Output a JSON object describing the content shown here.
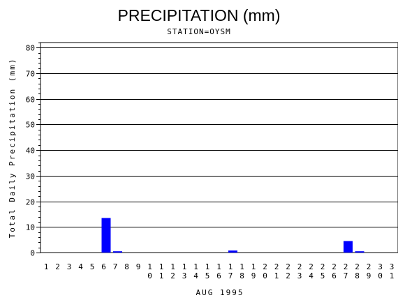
{
  "chart_data": {
    "type": "bar",
    "title": "PRECIPITATION (mm)",
    "subtitle": "STATION=OYSM",
    "xlabel": "AUG 1995",
    "ylabel": "Total Daily Precipitation (mm)",
    "ylim": [
      0,
      82
    ],
    "yticks": [
      0,
      10,
      20,
      30,
      40,
      50,
      60,
      70,
      80
    ],
    "grid": true,
    "colors": {
      "bar": "#0000ff",
      "grid": "#000000",
      "axis": "#000000"
    },
    "categories": [
      "1",
      "2",
      "3",
      "4",
      "5",
      "6",
      "7",
      "8",
      "9",
      "10",
      "11",
      "12",
      "13",
      "14",
      "15",
      "16",
      "17",
      "18",
      "19",
      "20",
      "21",
      "22",
      "23",
      "24",
      "25",
      "26",
      "27",
      "28",
      "29",
      "30",
      "31"
    ],
    "values": [
      0,
      0,
      0,
      0,
      0,
      13.5,
      0.5,
      0,
      0,
      0,
      0,
      0,
      0,
      0,
      0,
      0,
      0.8,
      0,
      0,
      0,
      0,
      0,
      0,
      0,
      0,
      0,
      4.5,
      0.5,
      0,
      0,
      0
    ]
  }
}
